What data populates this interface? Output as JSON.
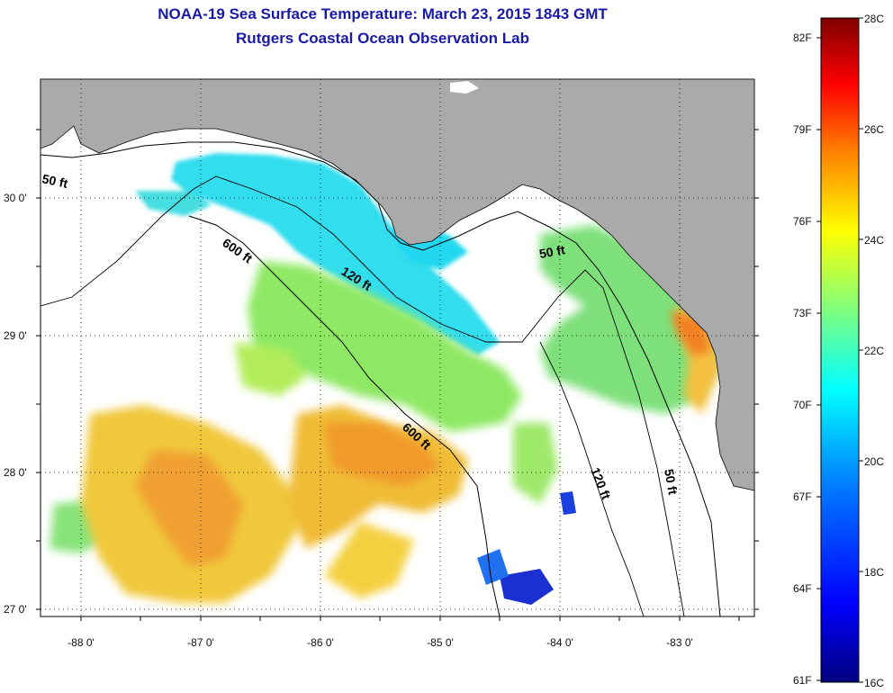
{
  "title": {
    "line1": "NOAA-19 Sea Surface Temperature:  March 23, 2015 1843 GMT",
    "line2": "Rutgers Coastal Ocean Observation Lab"
  },
  "map": {
    "lat_labels": [
      "30 0'",
      "29 0'",
      "28 0'",
      "27 0'"
    ],
    "lon_labels": [
      "-88 0'",
      "-87 0'",
      "-86 0'",
      "-85 0'",
      "-84 0'",
      "-83 0'"
    ],
    "contour_labels": [
      "50 ft",
      "600 ft",
      "120 ft",
      "50 ft",
      "600 ft",
      "120 ft",
      "50 ft"
    ],
    "land_color": "#aaaaaa",
    "cloud_color": "#ffffff"
  },
  "colorbar": {
    "fahrenheit_labels": [
      "82F",
      "79F",
      "76F",
      "73F",
      "70F",
      "67F",
      "64F",
      "61F"
    ],
    "celsius_labels": [
      "28C",
      "26C",
      "24C",
      "22C",
      "20C",
      "18C",
      "16C"
    ],
    "range_c": [
      16,
      28
    ],
    "colors": [
      "#00007f",
      "#0000ff",
      "#007fff",
      "#00ffff",
      "#7fff7f",
      "#ffff00",
      "#ff7f00",
      "#ff0000",
      "#7f0000"
    ]
  }
}
